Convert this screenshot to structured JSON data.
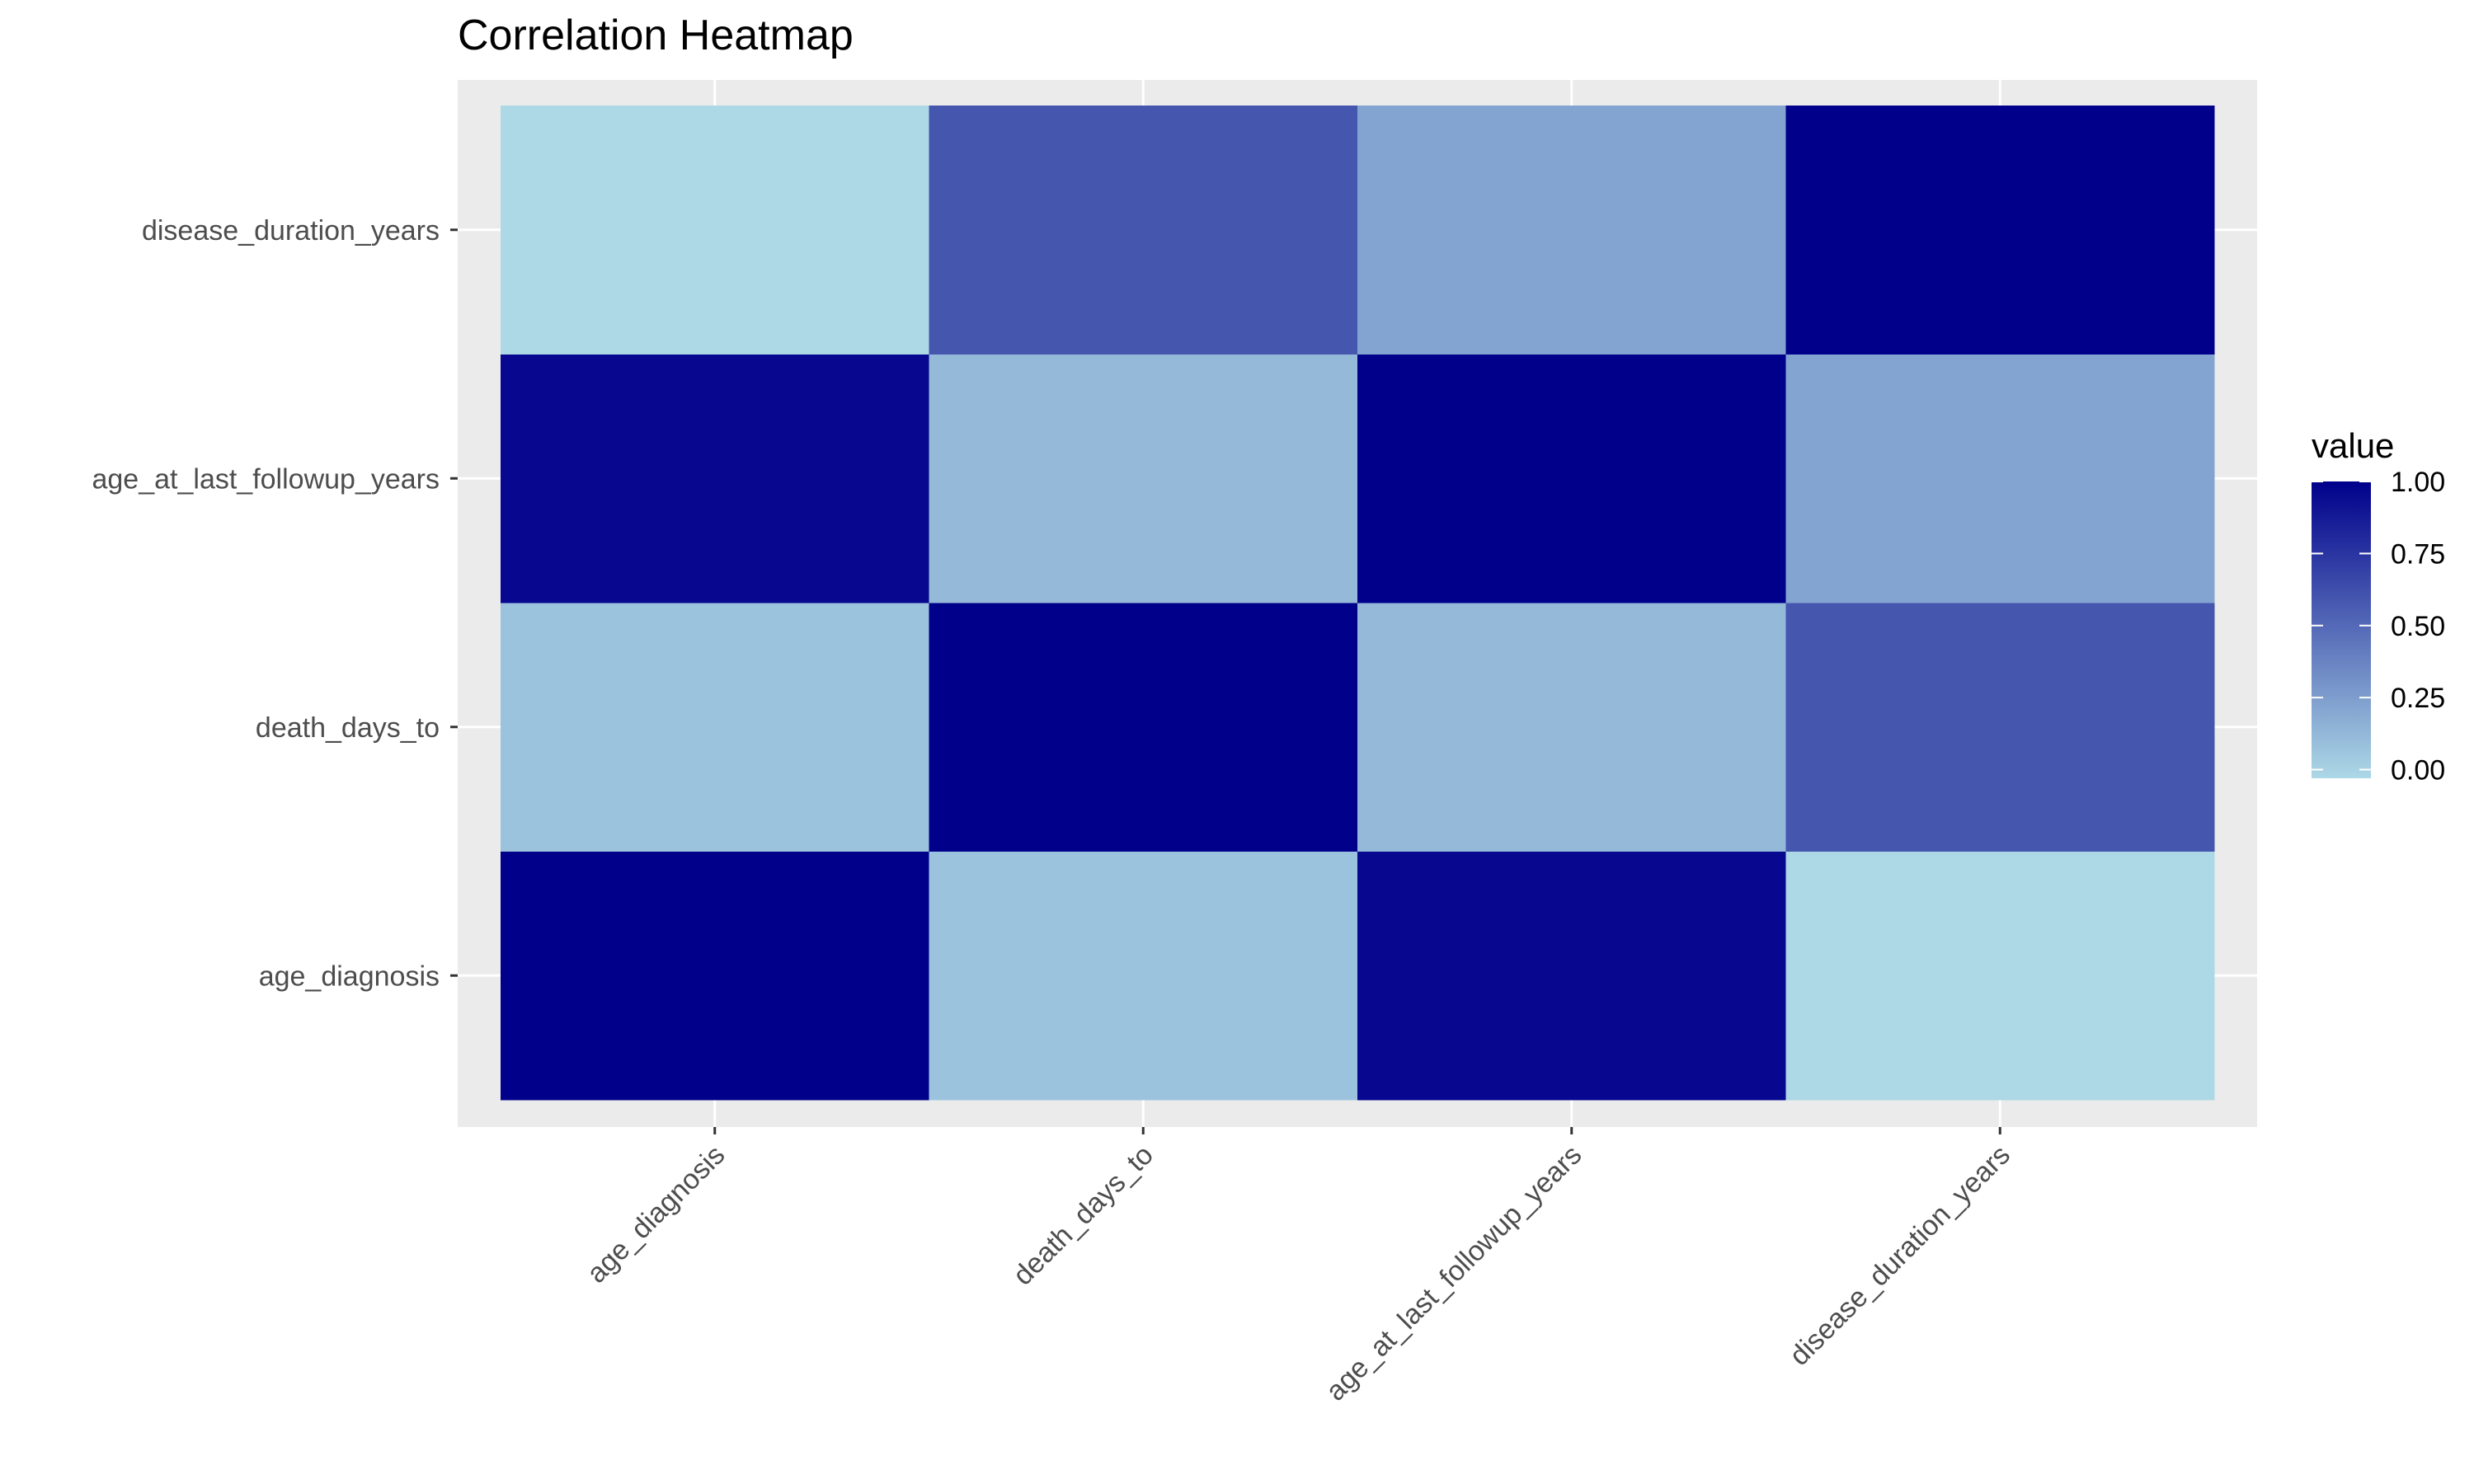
{
  "chart_data": {
    "type": "heatmap",
    "title": "Correlation Heatmap",
    "xlabel": "",
    "ylabel": "",
    "x_categories": [
      "age_diagnosis",
      "death_days_to",
      "age_at_last_followup_years",
      "disease_duration_years"
    ],
    "y_categories": [
      "age_diagnosis",
      "death_days_to",
      "age_at_last_followup_years",
      "disease_duration_years"
    ],
    "values": [
      [
        1.0,
        0.07,
        0.96,
        -0.03
      ],
      [
        0.07,
        1.0,
        0.12,
        0.59
      ],
      [
        0.96,
        0.12,
        1.0,
        0.22
      ],
      [
        -0.03,
        0.59,
        0.22,
        1.0
      ]
    ],
    "grid": true,
    "legend": {
      "title": "value",
      "position": "right",
      "ticks": [
        "1.00",
        "0.75",
        "0.50",
        "0.25",
        "0.00"
      ],
      "tick_values": [
        1.0,
        0.75,
        0.5,
        0.25,
        0.0
      ],
      "range": [
        -0.03,
        1.0
      ],
      "low_color": "#add8e6",
      "high_color": "#00008b"
    },
    "panel_background": "#ebebeb",
    "gridline_color": "#ffffff"
  }
}
